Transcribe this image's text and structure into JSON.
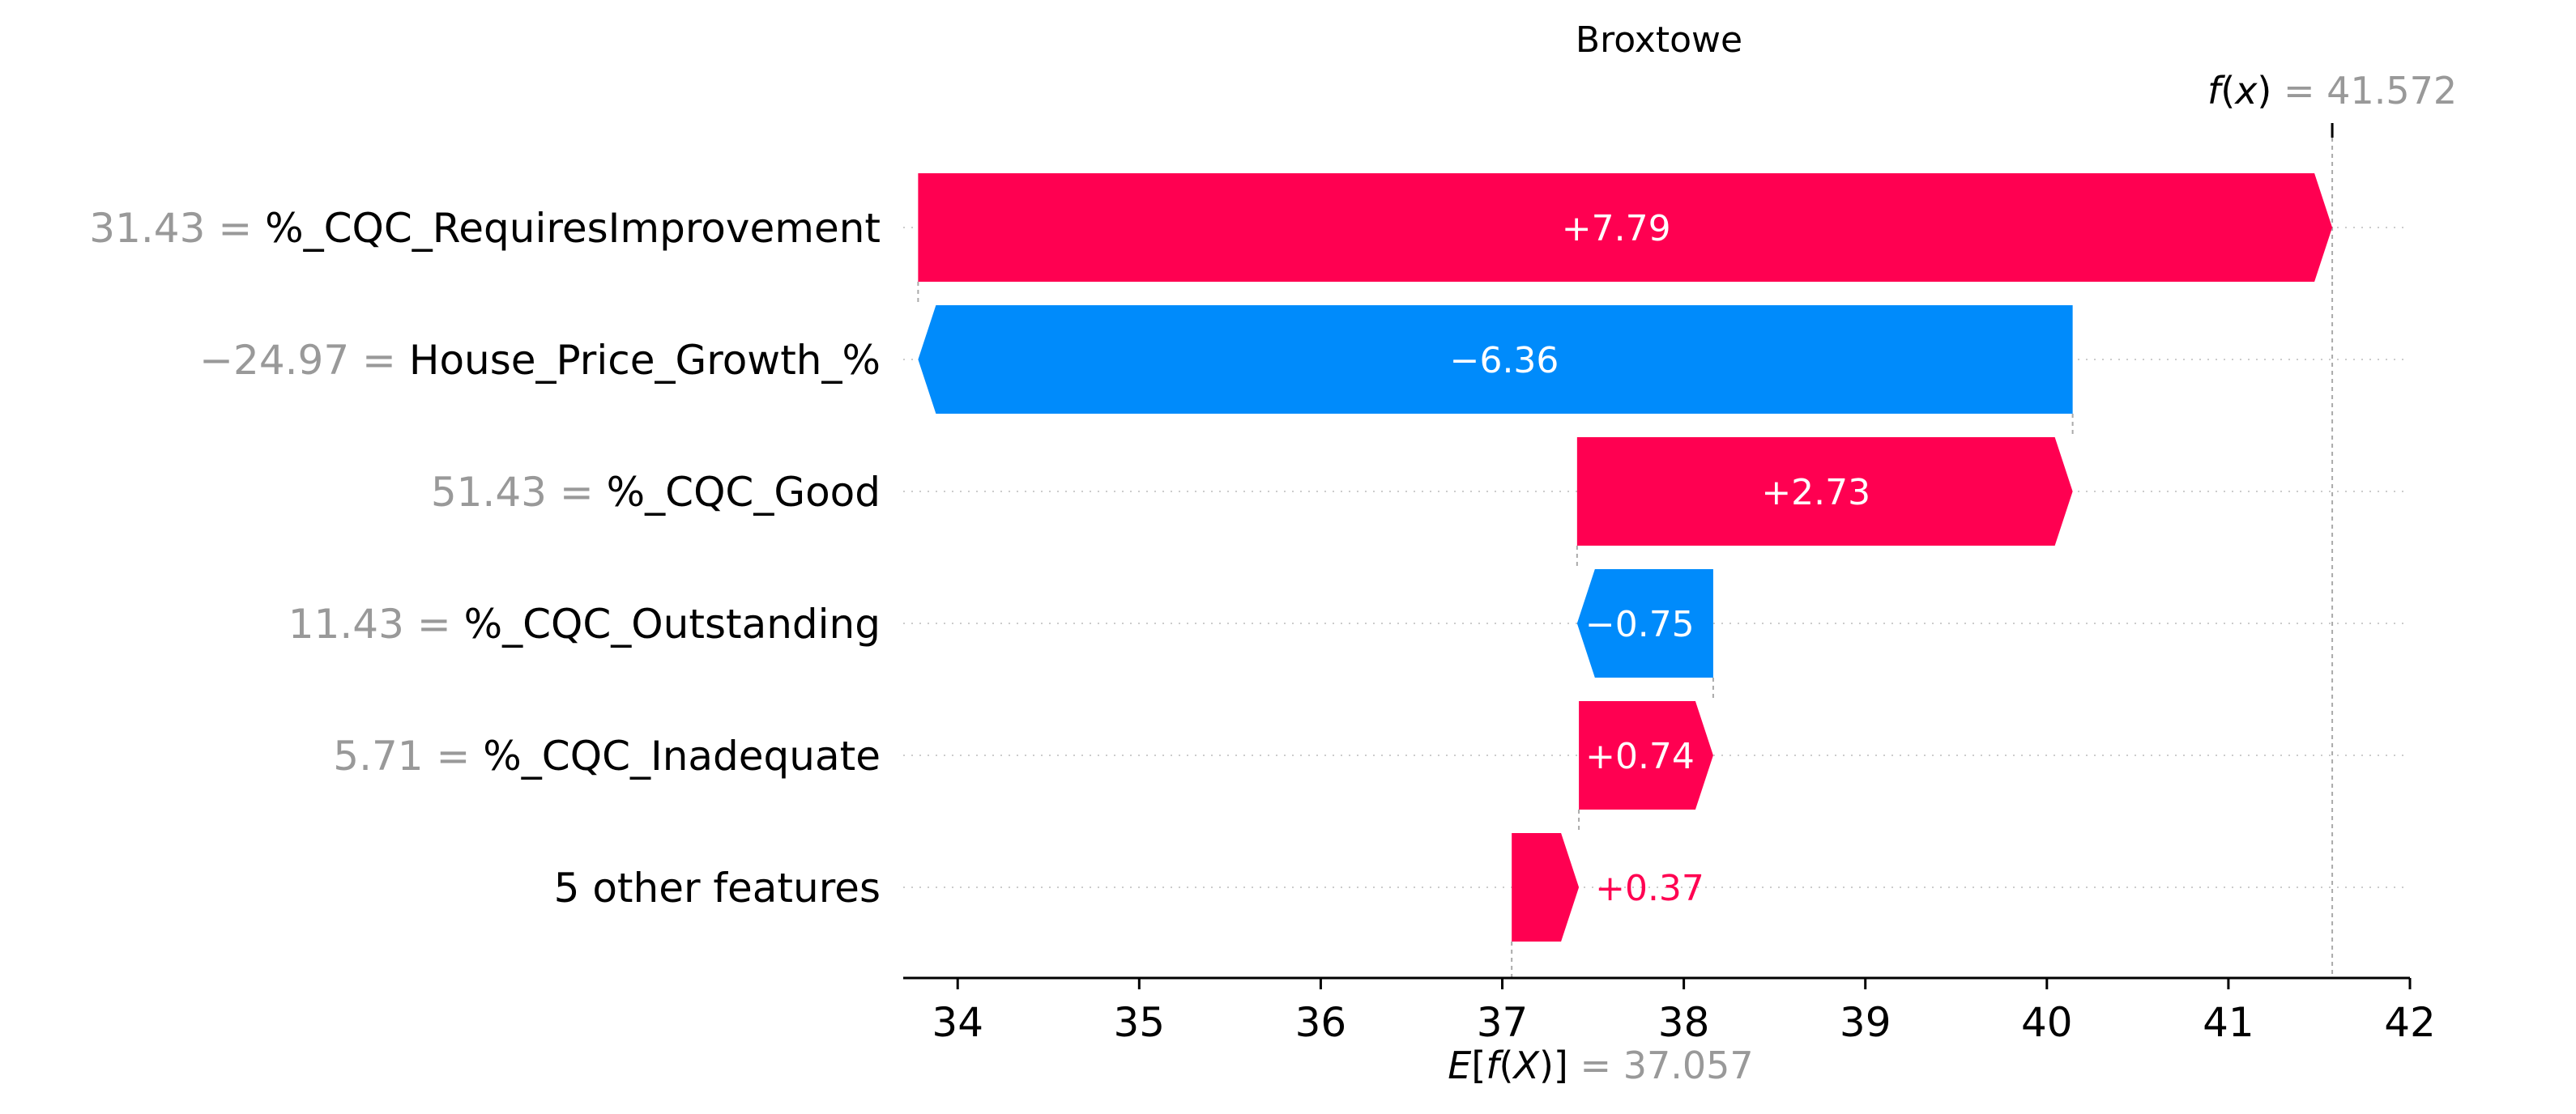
{
  "chart_data": {
    "type": "waterfall",
    "title": "Broxtowe",
    "base_value": 37.057,
    "output_value": 41.572,
    "base_label": "E[f(X)] = 37.057",
    "output_label": "f(x) = 41.572",
    "base_value_text": "37.057",
    "output_value_text": "41.572",
    "xlim": [
      33.7,
      42.0
    ],
    "xticks": [
      34,
      35,
      36,
      37,
      38,
      39,
      40,
      41,
      42
    ],
    "xtick_labels": [
      "34",
      "35",
      "36",
      "37",
      "38",
      "39",
      "40",
      "41",
      "42"
    ],
    "features": [
      {
        "value": "31.43",
        "name": "%_CQC_RequiresImprovement",
        "contribution": 7.79,
        "label": "+7.79"
      },
      {
        "value": "−24.97",
        "name": "House_Price_Growth_%",
        "contribution": -6.36,
        "label": "−6.36"
      },
      {
        "value": "51.43",
        "name": "%_CQC_Good",
        "contribution": 2.73,
        "label": "+2.73"
      },
      {
        "value": "11.43",
        "name": "%_CQC_Outstanding",
        "contribution": -0.75,
        "label": "−0.75"
      },
      {
        "value": "5.71",
        "name": "%_CQC_Inadequate",
        "contribution": 0.74,
        "label": "+0.74"
      },
      {
        "value": null,
        "name": "5 other features",
        "contribution": 0.37,
        "label": "+0.37"
      }
    ],
    "colors": {
      "positive": "#ff0051",
      "negative": "#008bfb",
      "muted": "#999999"
    }
  }
}
